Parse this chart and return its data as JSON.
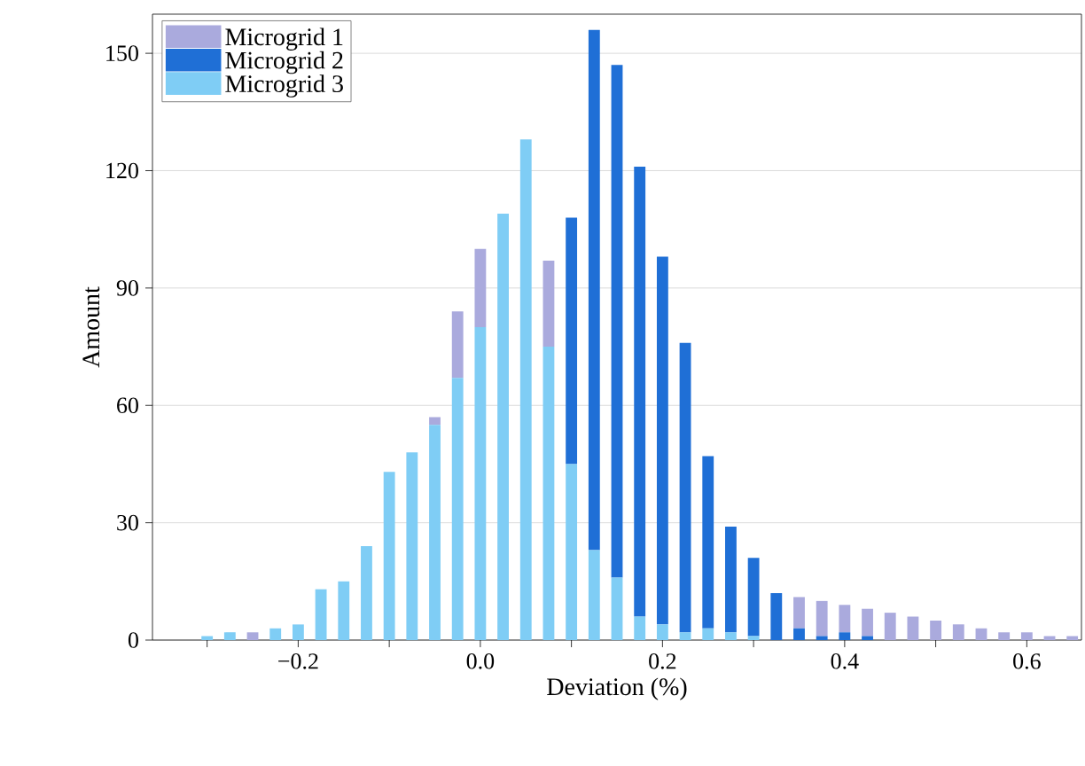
{
  "chart_data": {
    "type": "bar",
    "stacked": true,
    "xlabel": "Deviation (%)",
    "ylabel": "Amount",
    "x": [
      -0.3,
      -0.275,
      -0.25,
      -0.225,
      -0.2,
      -0.175,
      -0.15,
      -0.125,
      -0.1,
      -0.075,
      -0.05,
      -0.025,
      0.0,
      0.025,
      0.05,
      0.075,
      0.1,
      0.125,
      0.15,
      0.175,
      0.2,
      0.225,
      0.25,
      0.275,
      0.3,
      0.325,
      0.35,
      0.375,
      0.4,
      0.425,
      0.45,
      0.475,
      0.5,
      0.525,
      0.55,
      0.575,
      0.6,
      0.625,
      0.65
    ],
    "series": [
      {
        "name": "Microgrid 3",
        "color": "#7fcdf5",
        "values": [
          1,
          2,
          0,
          3,
          4,
          13,
          15,
          24,
          43,
          48,
          55,
          67,
          80,
          109,
          128,
          75,
          45,
          23,
          16,
          6,
          4,
          2,
          3,
          2,
          1,
          0,
          0,
          0,
          0,
          0,
          0,
          0,
          0,
          0,
          0,
          0,
          0,
          0,
          0
        ]
      },
      {
        "name": "Microgrid 2",
        "color": "#1f6fd6",
        "values": [
          0,
          0,
          0,
          0,
          0,
          0,
          0,
          0,
          0,
          0,
          0,
          0,
          0,
          0,
          0,
          0,
          63,
          133,
          131,
          115,
          94,
          74,
          44,
          27,
          20,
          12,
          3,
          1,
          2,
          1,
          0,
          0,
          0,
          0,
          0,
          0,
          0,
          0,
          0
        ]
      },
      {
        "name": "Microgrid 1",
        "color": "#aaaadd",
        "values": [
          0,
          0,
          2,
          0,
          0,
          0,
          0,
          0,
          0,
          0,
          2,
          17,
          20,
          0,
          0,
          22,
          0,
          0,
          0,
          0,
          0,
          0,
          0,
          0,
          0,
          0,
          8,
          9,
          7,
          7,
          7,
          6,
          5,
          4,
          3,
          2,
          2,
          1,
          1
        ]
      }
    ],
    "xlim": [
      -0.36,
      0.66
    ],
    "ylim": [
      0,
      160
    ],
    "xticks": [
      {
        "value": -0.3,
        "label": null
      },
      {
        "value": -0.2,
        "label": "−0.2"
      },
      {
        "value": -0.1,
        "label": null
      },
      {
        "value": 0.0,
        "label": "0.0"
      },
      {
        "value": 0.1,
        "label": null
      },
      {
        "value": 0.2,
        "label": "0.2"
      },
      {
        "value": 0.3,
        "label": null
      },
      {
        "value": 0.4,
        "label": "0.4"
      },
      {
        "value": 0.5,
        "label": null
      },
      {
        "value": 0.6,
        "label": "0.6"
      }
    ],
    "yticks": [
      0,
      30,
      60,
      90,
      120,
      150
    ],
    "grid": "y",
    "legend": "top left"
  }
}
